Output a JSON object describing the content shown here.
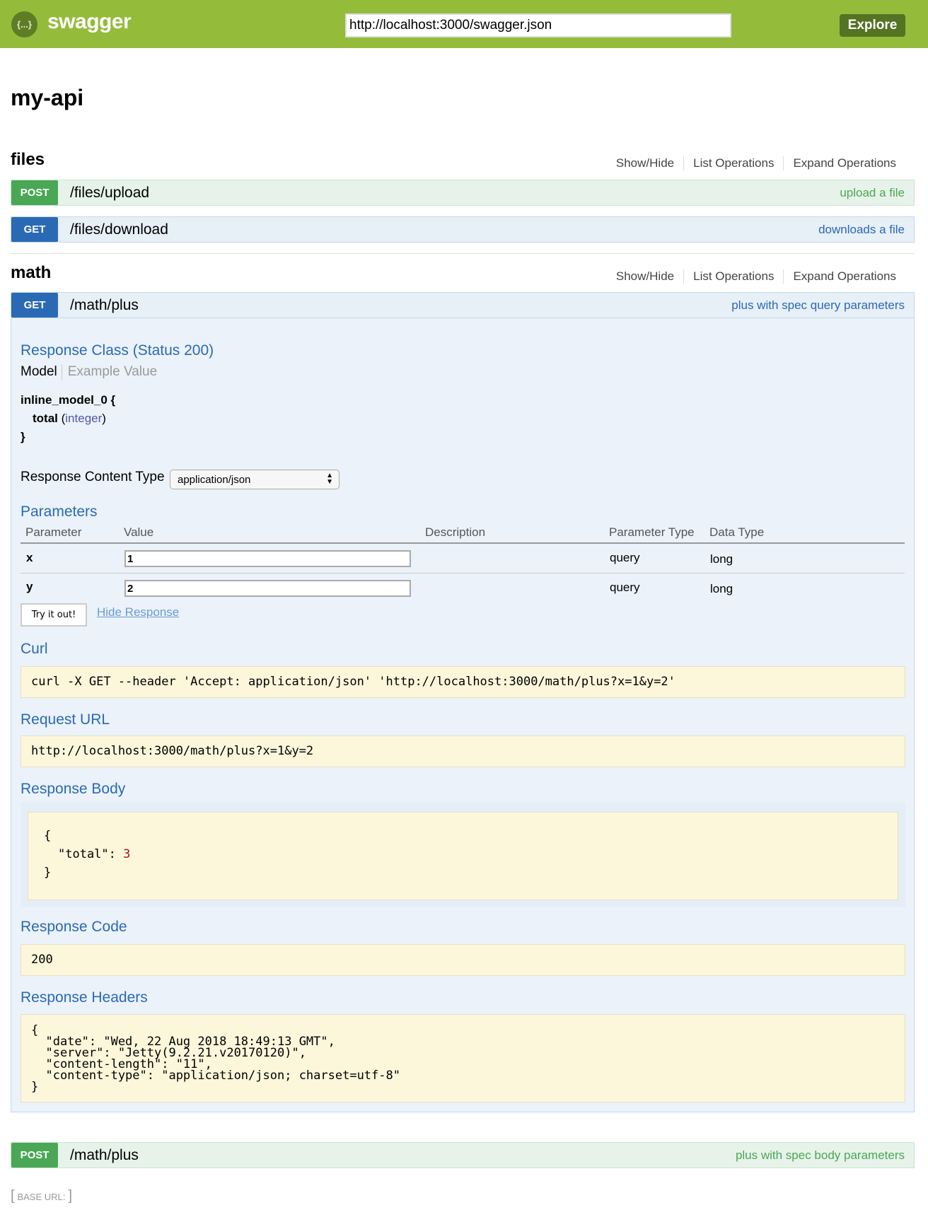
{
  "header": {
    "logo_symbol": "{...}",
    "brand": "swagger",
    "url_value": "http://localhost:3000/swagger.json",
    "explore_label": "Explore",
    "color": "#95bb3a"
  },
  "title": "my-api",
  "section_links": [
    "Show/Hide",
    "List Operations",
    "Expand Operations"
  ],
  "sections": [
    {
      "name": "files",
      "operations": [
        {
          "method": "POST",
          "path": "/files/upload",
          "summary": "upload a file"
        },
        {
          "method": "GET",
          "path": "/files/download",
          "summary": "downloads a file"
        }
      ]
    },
    {
      "name": "math",
      "operations": [
        {
          "method": "GET",
          "path": "/math/plus",
          "summary": "plus with spec query parameters"
        },
        {
          "method": "POST",
          "path": "/math/plus",
          "summary": "plus with spec body parameters"
        }
      ]
    }
  ],
  "expanded": {
    "response_class": "Response Class (Status 200)",
    "model_tab": "Model",
    "example_tab": "Example Value",
    "model_name": "inline_model_0 {",
    "model_field": "total",
    "model_type": "integer",
    "model_close": "}",
    "content_type_label": "Response Content Type",
    "content_type_value": "application/json",
    "parameters_title": "Parameters",
    "columns": [
      "Parameter",
      "Value",
      "Description",
      "Parameter Type",
      "Data Type"
    ],
    "params": [
      {
        "name": "x",
        "value": "1",
        "type": "query",
        "data_type": "long"
      },
      {
        "name": "y",
        "value": "2",
        "type": "query",
        "data_type": "long"
      }
    ],
    "try_label": "Try it out!",
    "hide_label": "Hide Response",
    "curl_title": "Curl",
    "curl": "curl -X GET --header 'Accept: application/json' 'http://localhost:3000/math/plus?x=1&y=2'",
    "request_url_title": "Request URL",
    "request_url": "http://localhost:3000/math/plus?x=1&y=2",
    "response_body_title": "Response Body",
    "body_open": "{",
    "body_key": "\"total\": ",
    "body_val": "3",
    "body_close": "}",
    "response_code_title": "Response Code",
    "response_code": "200",
    "response_headers_title": "Response Headers",
    "response_headers": "{\n  \"date\": \"Wed, 22 Aug 2018 18:49:13 GMT\",\n  \"server\": \"Jetty(9.2.21.v20170120)\",\n  \"content-length\": \"11\",\n  \"content-type\": \"application/json; charset=utf-8\"\n}"
  },
  "base_url": {
    "label": "BASE URL",
    "value": ""
  }
}
